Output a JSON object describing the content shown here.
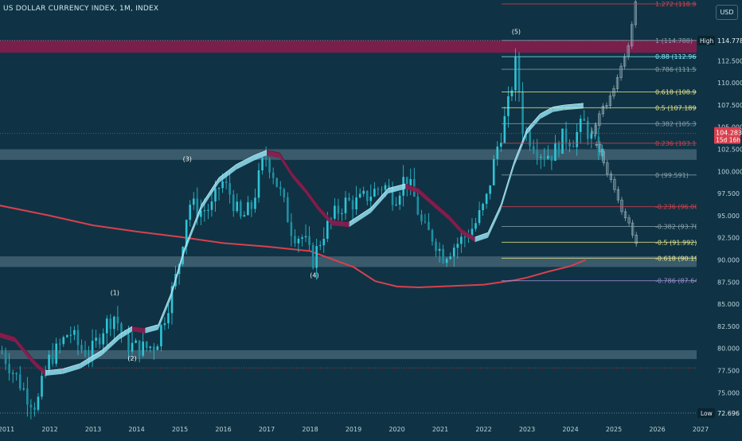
{
  "header": {
    "title": "US DOLLAR CURRENCY INDEX, 1M, INDEX",
    "currency_button": "USD"
  },
  "colors": {
    "background": "#0f3344",
    "candle": "#2ec4d6",
    "fib_red": "#d9404e",
    "fib_gray": "#8aa0ab",
    "fib_yellow": "#e8e48a",
    "fib_cyan": "#7fe3f5",
    "fib_purple": "#9f8fd0",
    "ribbon_up": "#8fe0f2",
    "ribbon_down": "#8c1c4e",
    "moving_average": "#d9404e",
    "zone": "#4a6a78",
    "zone_top": "#8c1c4e"
  },
  "chart_data": {
    "type": "candlestick",
    "title": "US DOLLAR CURRENCY INDEX, 1M, INDEX",
    "xlabel": "",
    "ylabel": "",
    "x_ticks": [
      "2011",
      "2012",
      "2013",
      "2014",
      "2015",
      "2016",
      "2017",
      "2018",
      "2019",
      "2020",
      "2021",
      "2022",
      "2023",
      "2024",
      "2025",
      "2026",
      "2027"
    ],
    "y_ticks": [
      "112.500",
      "110.000",
      "107.500",
      "105.000",
      "102.500",
      "100.000",
      "97.500",
      "95.000",
      "92.500",
      "90.000",
      "87.500",
      "85.000",
      "82.500",
      "80.000",
      "77.500",
      "75.000"
    ],
    "ylim": [
      72.0,
      121.0
    ],
    "y_axis_position": "right",
    "grid": false,
    "high_label": "High",
    "high_value": "114.778",
    "low_label": "Low",
    "low_value": "72.696",
    "current_price": "104.283",
    "current_countdown": "15d 16h",
    "fibonacci": [
      {
        "label": "1.272 (118.921)",
        "value": 118.921,
        "color": "red"
      },
      {
        "label": "1 (114.788)",
        "value": 114.788,
        "color": "gray"
      },
      {
        "label": "0.88 (112.964)",
        "value": 112.964,
        "color": "cyan"
      },
      {
        "label": "0.786 (111.536)",
        "value": 111.536,
        "color": "gray"
      },
      {
        "label": "0.618 (108.982)",
        "value": 108.982,
        "color": "yellow"
      },
      {
        "label": "0.5 (107.189)",
        "value": 107.189,
        "color": "yellow"
      },
      {
        "label": "0.382 (105.396)",
        "value": 105.396,
        "color": "gray"
      },
      {
        "label": "0.236 (103.177)",
        "value": 103.177,
        "color": "red"
      },
      {
        "label": "0 (99.591)",
        "value": 99.591,
        "color": "gray"
      },
      {
        "label": "-0.236 (96.004)",
        "value": 96.004,
        "color": "red"
      },
      {
        "label": "-0.382 (93.786)",
        "value": 93.786,
        "color": "gray"
      },
      {
        "label": "-0.5 (91.992)",
        "value": 91.992,
        "color": "yellow"
      },
      {
        "label": "-0.618 (90.199)",
        "value": 90.199,
        "color": "yellow"
      },
      {
        "label": "-0.786 (87.646)",
        "value": 87.646,
        "color": "purple"
      }
    ],
    "wave_labels": [
      {
        "label": "(1)",
        "date": 2013.5,
        "value": 86.3,
        "position": "above"
      },
      {
        "label": "(2)",
        "date": 2013.9,
        "value": 78.9,
        "position": "below"
      },
      {
        "label": "(3)",
        "date": 2015.17,
        "value": 101.4,
        "position": "above"
      },
      {
        "label": "(4)",
        "date": 2018.1,
        "value": 88.3,
        "position": "below"
      },
      {
        "label": "(5)",
        "date": 2022.75,
        "value": 115.8,
        "position": "above"
      }
    ],
    "zones": [
      {
        "from": 113.4,
        "to": 114.8,
        "color": "zone_top"
      },
      {
        "from": 101.3,
        "to": 102.5,
        "color": "zone"
      },
      {
        "from": 89.2,
        "to": 90.4,
        "color": "zone"
      },
      {
        "from": 78.8,
        "to": 79.8,
        "color": "zone"
      }
    ],
    "horizontal_lines": [
      {
        "value": 104.283,
        "style": "dotted-red"
      },
      {
        "value": 77.8,
        "style": "dotted-red"
      }
    ],
    "moving_average": [
      {
        "date": 2010.8,
        "value": 96.2
      },
      {
        "date": 2012,
        "value": 95.0
      },
      {
        "date": 2013,
        "value": 93.9
      },
      {
        "date": 2014,
        "value": 93.2
      },
      {
        "date": 2015,
        "value": 92.6
      },
      {
        "date": 2016,
        "value": 91.9
      },
      {
        "date": 2017,
        "value": 91.5
      },
      {
        "date": 2018,
        "value": 91.0
      },
      {
        "date": 2019,
        "value": 89.2
      },
      {
        "date": 2019.5,
        "value": 87.6
      },
      {
        "date": 2020,
        "value": 87.0
      },
      {
        "date": 2020.5,
        "value": 86.9
      },
      {
        "date": 2021,
        "value": 87.0
      },
      {
        "date": 2021.5,
        "value": 87.1
      },
      {
        "date": 2022,
        "value": 87.2
      },
      {
        "date": 2022.7,
        "value": 87.7
      },
      {
        "date": 2023,
        "value": 88.0
      },
      {
        "date": 2023.5,
        "value": 88.7
      },
      {
        "date": 2024,
        "value": 89.3
      },
      {
        "date": 2024.35,
        "value": 90.0
      }
    ],
    "ribbon": [
      {
        "date": 2010.8,
        "value": 81.6
      },
      {
        "date": 2011.2,
        "value": 81.0
      },
      {
        "date": 2011.6,
        "value": 78.6
      },
      {
        "date": 2011.9,
        "value": 77.2
      },
      {
        "date": 2012.3,
        "value": 77.4
      },
      {
        "date": 2012.7,
        "value": 78.0
      },
      {
        "date": 2013.2,
        "value": 79.5
      },
      {
        "date": 2013.6,
        "value": 81.3
      },
      {
        "date": 2013.9,
        "value": 82.2
      },
      {
        "date": 2014.2,
        "value": 82.0
      },
      {
        "date": 2014.5,
        "value": 82.4
      },
      {
        "date": 2014.8,
        "value": 86.0
      },
      {
        "date": 2015.1,
        "value": 91.0
      },
      {
        "date": 2015.5,
        "value": 96.0
      },
      {
        "date": 2015.9,
        "value": 99.0
      },
      {
        "date": 2016.3,
        "value": 100.5
      },
      {
        "date": 2016.7,
        "value": 101.5
      },
      {
        "date": 2017.0,
        "value": 102.1
      },
      {
        "date": 2017.3,
        "value": 101.8
      },
      {
        "date": 2017.6,
        "value": 99.5
      },
      {
        "date": 2017.9,
        "value": 97.8
      },
      {
        "date": 2018.2,
        "value": 95.8
      },
      {
        "date": 2018.5,
        "value": 94.2
      },
      {
        "date": 2018.9,
        "value": 94.0
      },
      {
        "date": 2019.4,
        "value": 95.6
      },
      {
        "date": 2019.8,
        "value": 97.8
      },
      {
        "date": 2020.2,
        "value": 98.3
      },
      {
        "date": 2020.5,
        "value": 97.8
      },
      {
        "date": 2020.8,
        "value": 96.5
      },
      {
        "date": 2021.2,
        "value": 94.8
      },
      {
        "date": 2021.5,
        "value": 93.2
      },
      {
        "date": 2021.8,
        "value": 92.3
      },
      {
        "date": 2022.1,
        "value": 92.8
      },
      {
        "date": 2022.4,
        "value": 96.0
      },
      {
        "date": 2022.7,
        "value": 100.8
      },
      {
        "date": 2023.0,
        "value": 104.5
      },
      {
        "date": 2023.3,
        "value": 106.2
      },
      {
        "date": 2023.6,
        "value": 107.0
      },
      {
        "date": 2023.85,
        "value": 107.2
      },
      {
        "date": 2024.3,
        "value": 107.4
      }
    ],
    "candle_series": [
      {
        "date": 2010.9,
        "value": 79.5
      },
      {
        "date": 2011.2,
        "value": 77.0
      },
      {
        "date": 2011.5,
        "value": 74.5
      },
      {
        "date": 2011.7,
        "value": 73.5
      },
      {
        "date": 2011.95,
        "value": 78.5
      },
      {
        "date": 2012.2,
        "value": 80.0
      },
      {
        "date": 2012.45,
        "value": 82.0
      },
      {
        "date": 2012.7,
        "value": 80.0
      },
      {
        "date": 2012.95,
        "value": 79.5
      },
      {
        "date": 2013.25,
        "value": 82.5
      },
      {
        "date": 2013.5,
        "value": 83.8
      },
      {
        "date": 2013.75,
        "value": 80.5
      },
      {
        "date": 2013.95,
        "value": 80.2
      },
      {
        "date": 2014.2,
        "value": 80.0
      },
      {
        "date": 2014.45,
        "value": 80.5
      },
      {
        "date": 2014.7,
        "value": 84.5
      },
      {
        "date": 2014.95,
        "value": 88.8
      },
      {
        "date": 2015.2,
        "value": 96.5
      },
      {
        "date": 2015.45,
        "value": 95.5
      },
      {
        "date": 2015.75,
        "value": 96.0
      },
      {
        "date": 2015.95,
        "value": 99.0
      },
      {
        "date": 2016.15,
        "value": 97.5
      },
      {
        "date": 2016.4,
        "value": 94.5
      },
      {
        "date": 2016.65,
        "value": 96.0
      },
      {
        "date": 2016.95,
        "value": 101.8
      },
      {
        "date": 2017.1,
        "value": 100.5
      },
      {
        "date": 2017.35,
        "value": 97.0
      },
      {
        "date": 2017.6,
        "value": 93.0
      },
      {
        "date": 2017.85,
        "value": 92.5
      },
      {
        "date": 2018.05,
        "value": 89.8
      },
      {
        "date": 2018.3,
        "value": 93.0
      },
      {
        "date": 2018.55,
        "value": 95.0
      },
      {
        "date": 2018.8,
        "value": 96.5
      },
      {
        "date": 2019.1,
        "value": 96.5
      },
      {
        "date": 2019.4,
        "value": 97.5
      },
      {
        "date": 2019.7,
        "value": 98.5
      },
      {
        "date": 2019.95,
        "value": 97.0
      },
      {
        "date": 2020.2,
        "value": 99.5
      },
      {
        "date": 2020.4,
        "value": 97.0
      },
      {
        "date": 2020.6,
        "value": 93.5
      },
      {
        "date": 2020.85,
        "value": 92.5
      },
      {
        "date": 2021.05,
        "value": 90.5
      },
      {
        "date": 2021.3,
        "value": 91.5
      },
      {
        "date": 2021.55,
        "value": 92.5
      },
      {
        "date": 2021.8,
        "value": 94.0
      },
      {
        "date": 2022.05,
        "value": 96.5
      },
      {
        "date": 2022.3,
        "value": 102.5
      },
      {
        "date": 2022.55,
        "value": 107.0
      },
      {
        "date": 2022.75,
        "value": 112.5
      },
      {
        "date": 2022.9,
        "value": 105.0
      },
      {
        "date": 2023.1,
        "value": 103.5
      },
      {
        "date": 2023.35,
        "value": 102.0
      },
      {
        "date": 2023.6,
        "value": 102.0
      },
      {
        "date": 2023.85,
        "value": 104.0
      },
      {
        "date": 2024.05,
        "value": 103.5
      },
      {
        "date": 2024.3,
        "value": 105.5
      },
      {
        "date": 2024.55,
        "value": 103.0
      },
      {
        "date": 2024.8,
        "value": 101.5
      }
    ],
    "projection_series": [
      {
        "date": 2024.5,
        "value": 104.5
      },
      {
        "date": 2024.7,
        "value": 106.5
      },
      {
        "date": 2024.9,
        "value": 108.5
      },
      {
        "date": 2025.1,
        "value": 110.5
      },
      {
        "date": 2025.3,
        "value": 113.5
      },
      {
        "date": 2025.5,
        "value": 119.0
      }
    ],
    "projection_down_series": [
      {
        "date": 2024.6,
        "value": 103.0
      },
      {
        "date": 2024.8,
        "value": 100.5
      },
      {
        "date": 2025.0,
        "value": 98.0
      },
      {
        "date": 2025.2,
        "value": 95.0
      },
      {
        "date": 2025.4,
        "value": 93.8
      },
      {
        "date": 2025.55,
        "value": 91.0
      }
    ]
  }
}
